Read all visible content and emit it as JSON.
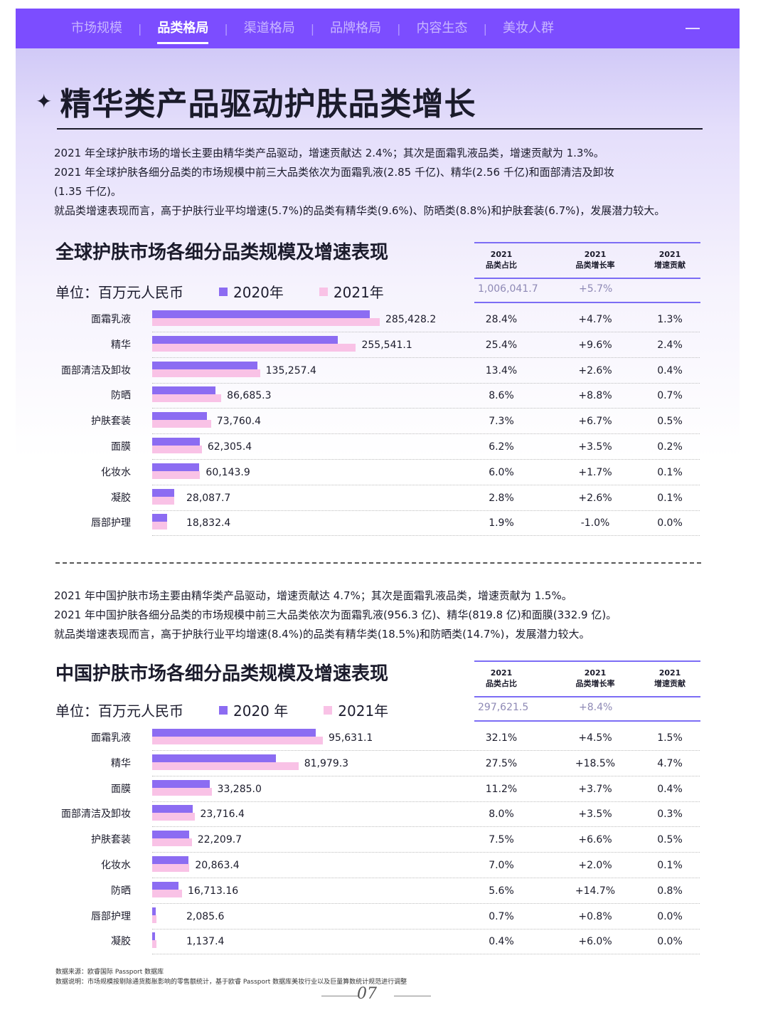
{
  "nav": {
    "items": [
      "市场规模",
      "品类格局",
      "渠道格局",
      "品牌格局",
      "内容生态",
      "美妆人群"
    ],
    "active_index": 1
  },
  "title": "精华类产品驱动护肤品类增长",
  "global_text": [
    "2021 年全球护肤市场的增长主要由精华类产品驱动，增速贡献达 2.4%；其次是面霜乳液品类，增速贡献为 1.3%。",
    "2021 年全球护肤各细分品类的市场规模中前三大品类依次为面霜乳液(2.85 千亿)、精华(2.56 千亿)和面部清洁及卸妆",
    "(1.35 千亿)。",
    "就品类增速表现而言，高于护肤行业平均增速(5.7%)的品类有精华类(9.6%)、防晒类(8.8%)和护肤套装(6.7%)，发展潜力较大。"
  ],
  "china_text": [
    "2021 年中国护肤市场主要由精华类产品驱动，增速贡献达 4.7%；其次是面霜乳液品类，增速贡献为 1.5%。",
    "2021 年中国护肤各细分品类的市场规模中前三大品类依次为面霜乳液(956.3 亿)、精华(819.8 亿)和面膜(332.9 亿)。",
    "就品类增速表现而言，高于护肤行业平均增速(8.4%)的品类有精华类(18.5%)和防晒类(14.7%)，发展潜力较大。"
  ],
  "global_unit": "单位：百万元人民币",
  "china_unit": "单位：百万元人民币",
  "colors": {
    "nav_bg": "#7c4dff",
    "bar_2020": "#8c6cf2",
    "bar_2021": "#f9c2e6",
    "table_rule": "#7c6df5"
  },
  "chart_data": [
    {
      "type": "bar",
      "orientation": "horizontal",
      "title": "全球护肤市场各细分品类规模及增速表现",
      "unit": "单位：百万元人民币",
      "series_names": [
        "2020年",
        "2021年"
      ],
      "categories": [
        "面霜乳液",
        "精华",
        "面部清洁及卸妆",
        "防晒",
        "护肤套装",
        "面膜",
        "化妆水",
        "凝胶",
        "唇部护理"
      ],
      "values_2020": [
        272600,
        233000,
        131800,
        79600,
        69100,
        60200,
        59100,
        27400,
        18400
      ],
      "values_2021": [
        285428.2,
        255541.1,
        135257.4,
        86685.3,
        73760.4,
        62305.4,
        60143.9,
        28087.7,
        18832.4
      ],
      "value_labels": [
        "285,428.2",
        "255,541.1",
        "135,257.4",
        "86,685.3",
        "73,760.4",
        "62,305.4",
        "60,143.9",
        "28,087.7",
        "18,832.4"
      ],
      "table": {
        "headers": [
          [
            "2021",
            "品类占比"
          ],
          [
            "2021",
            "品类增长率"
          ],
          [
            "2021",
            "增速贡献"
          ]
        ],
        "total_share": "1,006,041.7",
        "total_growth": "+5.7%",
        "rows": [
          [
            "28.4%",
            "+4.7%",
            "1.3%"
          ],
          [
            "25.4%",
            "+9.6%",
            "2.4%"
          ],
          [
            "13.4%",
            "+2.6%",
            "0.4%"
          ],
          [
            "8.6%",
            "+8.8%",
            "0.7%"
          ],
          [
            "7.3%",
            "+6.7%",
            "0.5%"
          ],
          [
            "6.2%",
            "+3.5%",
            "0.2%"
          ],
          [
            "6.0%",
            "+1.7%",
            "0.1%"
          ],
          [
            "2.8%",
            "+2.6%",
            "0.1%"
          ],
          [
            "1.9%",
            "-1.0%",
            "0.0%"
          ]
        ]
      }
    },
    {
      "type": "bar",
      "orientation": "horizontal",
      "title": "中国护肤市场各细分品类规模及增速表现",
      "unit": "单位：百万元人民币",
      "series_names": [
        "2020 年",
        "2021年"
      ],
      "categories": [
        "面霜乳液",
        "精华",
        "面膜",
        "面部清洁及卸妆",
        "护肤套装",
        "化妆水",
        "防晒",
        "唇部护理",
        "凝胶"
      ],
      "values_2020": [
        91500,
        69200,
        32100,
        22900,
        20800,
        20400,
        14600,
        2070,
        1070
      ],
      "values_2021": [
        95631.1,
        81979.3,
        33285.0,
        23716.4,
        22209.7,
        20863.4,
        16713.16,
        2085.6,
        1137.4
      ],
      "value_labels": [
        "95,631.1",
        "81,979.3",
        "33,285.0",
        "23,716.4",
        "22,209.7",
        "20,863.4",
        "16,713.16",
        "2,085.6",
        "1,137.4"
      ],
      "table": {
        "headers": [
          [
            "2021",
            "品类占比"
          ],
          [
            "2021",
            "品类增长率"
          ],
          [
            "2021",
            "增速贡献"
          ]
        ],
        "total_share": "297,621.5",
        "total_growth": "+8.4%",
        "rows": [
          [
            "32.1%",
            "+4.5%",
            "1.5%"
          ],
          [
            "27.5%",
            "+18.5%",
            "4.7%"
          ],
          [
            "11.2%",
            "+3.7%",
            "0.4%"
          ],
          [
            "8.0%",
            "+3.5%",
            "0.3%"
          ],
          [
            "7.5%",
            "+6.6%",
            "0.5%"
          ],
          [
            "7.0%",
            "+2.0%",
            "0.1%"
          ],
          [
            "5.6%",
            "+14.7%",
            "0.8%"
          ],
          [
            "0.7%",
            "+0.8%",
            "0.0%"
          ],
          [
            "0.4%",
            "+6.0%",
            "0.0%"
          ]
        ]
      }
    }
  ],
  "footnotes": [
    "数据来源：欧睿国际 Passport 数据库",
    "数据说明：市场规模按剔除通货膨胀影响的零售额统计，基于欧睿 Passport 数据库美妆行业以及巨量算数统计规范进行调整"
  ],
  "page_number": "07"
}
